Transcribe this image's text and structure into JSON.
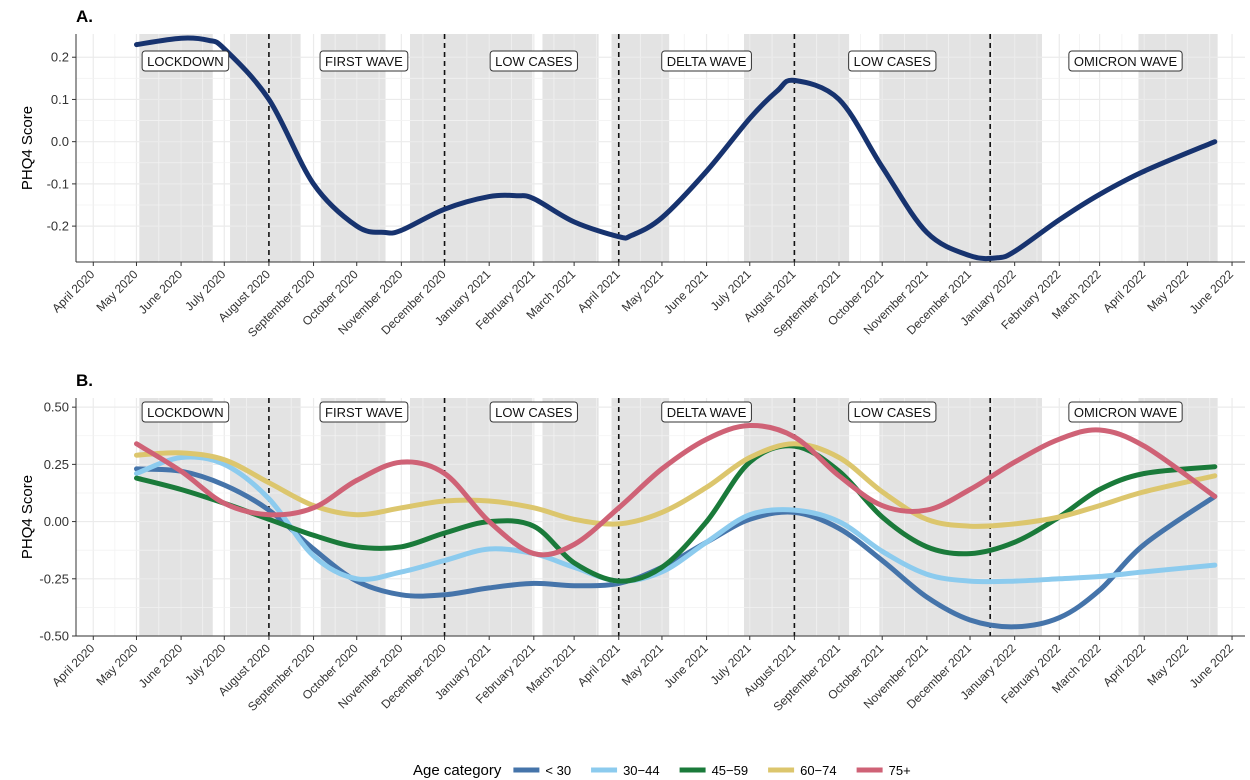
{
  "chart_data": [
    {
      "panel": "A.",
      "type": "line",
      "ylabel": "PHQ4 Score",
      "ylim": [
        -0.285,
        0.255
      ],
      "yticks": [
        0.2,
        0.1,
        0.0,
        -0.1,
        -0.2
      ],
      "ytick_labels": [
        "0.2",
        "0.1",
        "0.0",
        "-0.1",
        "-0.2"
      ],
      "grid": true,
      "series": [
        {
          "color": "#17336f",
          "x": [
            "2020-05-01",
            "2020-06-01",
            "2020-06-20",
            "2020-07-01",
            "2020-08-01",
            "2020-09-01",
            "2020-10-01",
            "2020-10-20",
            "2020-11-01",
            "2020-12-01",
            "2021-01-01",
            "2021-01-20",
            "2021-02-01",
            "2021-03-01",
            "2021-04-01",
            "2021-04-10",
            "2021-05-01",
            "2021-06-01",
            "2021-07-01",
            "2021-07-20",
            "2021-08-01",
            "2021-09-01",
            "2021-10-01",
            "2021-11-01",
            "2021-12-01",
            "2021-12-20",
            "2022-01-01",
            "2022-02-01",
            "2022-03-01",
            "2022-04-01",
            "2022-05-20"
          ],
          "y": [
            0.23,
            0.245,
            0.24,
            0.22,
            0.1,
            -0.1,
            -0.2,
            -0.215,
            -0.21,
            -0.16,
            -0.13,
            -0.128,
            -0.135,
            -0.19,
            -0.225,
            -0.222,
            -0.18,
            -0.07,
            0.055,
            0.12,
            0.145,
            0.1,
            -0.06,
            -0.215,
            -0.27,
            -0.275,
            -0.26,
            -0.185,
            -0.125,
            -0.07,
            0.0
          ]
        }
      ]
    },
    {
      "panel": "B.",
      "type": "line",
      "ylabel": "PHQ4 Score",
      "ylim": [
        -0.5,
        0.54
      ],
      "yticks": [
        0.5,
        0.25,
        0.0,
        -0.25,
        -0.5
      ],
      "ytick_labels": [
        "0.50",
        "0.25",
        "0.00",
        "-0.25",
        "-0.50"
      ],
      "grid": true,
      "legend": {
        "title": "Age category",
        "position": "bottom"
      },
      "series": [
        {
          "name": "< 30",
          "color": "#4574aa",
          "x": [
            "2020-05-01",
            "2020-06-01",
            "2020-07-01",
            "2020-08-01",
            "2020-09-01",
            "2020-10-01",
            "2020-11-01",
            "2020-12-01",
            "2021-01-01",
            "2021-02-01",
            "2021-03-01",
            "2021-04-01",
            "2021-05-01",
            "2021-06-01",
            "2021-07-01",
            "2021-08-01",
            "2021-09-01",
            "2021-10-01",
            "2021-11-01",
            "2021-12-01",
            "2022-01-01",
            "2022-02-01",
            "2022-03-01",
            "2022-04-01",
            "2022-05-20"
          ],
          "y": [
            0.23,
            0.22,
            0.16,
            0.05,
            -0.12,
            -0.26,
            -0.32,
            -0.32,
            -0.29,
            -0.27,
            -0.28,
            -0.27,
            -0.2,
            -0.09,
            0.01,
            0.04,
            -0.03,
            -0.17,
            -0.33,
            -0.43,
            -0.46,
            -0.42,
            -0.3,
            -0.1,
            0.11
          ]
        },
        {
          "name": "30−44",
          "color": "#8ccbee",
          "x": [
            "2020-05-01",
            "2020-06-01",
            "2020-07-01",
            "2020-08-01",
            "2020-09-01",
            "2020-10-01",
            "2020-11-01",
            "2020-12-01",
            "2021-01-01",
            "2021-02-01",
            "2021-03-01",
            "2021-04-01",
            "2021-05-01",
            "2021-06-01",
            "2021-07-01",
            "2021-08-01",
            "2021-09-01",
            "2021-10-01",
            "2021-11-01",
            "2021-12-01",
            "2022-01-01",
            "2022-02-01",
            "2022-03-01",
            "2022-04-01",
            "2022-05-20"
          ],
          "y": [
            0.21,
            0.28,
            0.25,
            0.1,
            -0.15,
            -0.25,
            -0.22,
            -0.17,
            -0.12,
            -0.14,
            -0.2,
            -0.26,
            -0.22,
            -0.09,
            0.03,
            0.05,
            0.0,
            -0.13,
            -0.23,
            -0.26,
            -0.26,
            -0.25,
            -0.24,
            -0.22,
            -0.19
          ]
        },
        {
          "name": "45−59",
          "color": "#1a7a3a",
          "x": [
            "2020-05-01",
            "2020-06-01",
            "2020-07-01",
            "2020-08-01",
            "2020-09-01",
            "2020-10-01",
            "2020-11-01",
            "2020-12-01",
            "2021-01-01",
            "2021-02-01",
            "2021-03-01",
            "2021-04-01",
            "2021-05-01",
            "2021-06-01",
            "2021-07-01",
            "2021-08-01",
            "2021-09-01",
            "2021-10-01",
            "2021-11-01",
            "2021-12-01",
            "2022-01-01",
            "2022-02-01",
            "2022-03-01",
            "2022-04-01",
            "2022-05-20"
          ],
          "y": [
            0.19,
            0.14,
            0.08,
            0.01,
            -0.06,
            -0.11,
            -0.11,
            -0.05,
            0.0,
            -0.02,
            -0.18,
            -0.26,
            -0.2,
            0.0,
            0.26,
            0.33,
            0.22,
            0.02,
            -0.11,
            -0.14,
            -0.09,
            0.02,
            0.14,
            0.21,
            0.24
          ]
        },
        {
          "name": "60−74",
          "color": "#dcc66d",
          "x": [
            "2020-05-01",
            "2020-06-01",
            "2020-07-01",
            "2020-08-01",
            "2020-09-01",
            "2020-10-01",
            "2020-11-01",
            "2020-12-01",
            "2021-01-01",
            "2021-02-01",
            "2021-03-01",
            "2021-04-01",
            "2021-05-01",
            "2021-06-01",
            "2021-07-01",
            "2021-08-01",
            "2021-09-01",
            "2021-10-01",
            "2021-11-01",
            "2021-12-01",
            "2022-01-01",
            "2022-02-01",
            "2022-03-01",
            "2022-04-01",
            "2022-05-20"
          ],
          "y": [
            0.29,
            0.3,
            0.27,
            0.17,
            0.07,
            0.03,
            0.06,
            0.09,
            0.09,
            0.06,
            0.01,
            -0.01,
            0.04,
            0.15,
            0.28,
            0.34,
            0.28,
            0.13,
            0.01,
            -0.02,
            -0.01,
            0.02,
            0.07,
            0.13,
            0.2
          ]
        },
        {
          "name": "75+",
          "color": "#cf6276",
          "x": [
            "2020-05-01",
            "2020-06-01",
            "2020-07-01",
            "2020-08-01",
            "2020-09-01",
            "2020-10-01",
            "2020-11-01",
            "2020-12-01",
            "2021-01-01",
            "2021-02-01",
            "2021-03-01",
            "2021-04-01",
            "2021-05-01",
            "2021-06-01",
            "2021-07-01",
            "2021-08-01",
            "2021-09-01",
            "2021-10-01",
            "2021-11-01",
            "2021-12-01",
            "2022-01-01",
            "2022-02-01",
            "2022-03-01",
            "2022-04-01",
            "2022-05-20"
          ],
          "y": [
            0.34,
            0.22,
            0.08,
            0.03,
            0.06,
            0.18,
            0.26,
            0.21,
            0.0,
            -0.14,
            -0.1,
            0.06,
            0.23,
            0.36,
            0.42,
            0.37,
            0.2,
            0.07,
            0.05,
            0.14,
            0.26,
            0.36,
            0.4,
            0.33,
            0.11
          ]
        }
      ]
    }
  ],
  "x_axis": {
    "ticks": [
      "2020-04-01",
      "2020-05-01",
      "2020-06-01",
      "2020-07-01",
      "2020-08-01",
      "2020-09-01",
      "2020-10-01",
      "2020-11-01",
      "2020-12-01",
      "2021-01-01",
      "2021-02-01",
      "2021-03-01",
      "2021-04-01",
      "2021-05-01",
      "2021-06-01",
      "2021-07-01",
      "2021-08-01",
      "2021-09-01",
      "2021-10-01",
      "2021-11-01",
      "2021-12-01",
      "2022-01-01",
      "2022-02-01",
      "2022-03-01",
      "2022-04-01",
      "2022-05-01",
      "2022-06-01"
    ],
    "tick_labels": [
      "April 2020",
      "May 2020",
      "June 2020",
      "July 2020",
      "August 2020",
      "September 2020",
      "October 2020",
      "November 2020",
      "December 2020",
      "January 2021",
      "February 2021",
      "March 2021",
      "April 2021",
      "May 2021",
      "June 2021",
      "July 2021",
      "August 2021",
      "September 2021",
      "October 2021",
      "November 2021",
      "December 2021",
      "January 2022",
      "February 2022",
      "March 2022",
      "April 2022",
      "May 2022",
      "June 2022"
    ],
    "range": [
      "2020-03-20",
      "2022-06-10"
    ]
  },
  "shaded_periods": [
    [
      "2020-05-03",
      "2020-06-23"
    ],
    [
      "2020-07-05",
      "2020-08-23"
    ],
    [
      "2020-09-06",
      "2020-10-21"
    ],
    [
      "2020-11-07",
      "2021-01-31"
    ],
    [
      "2021-02-07",
      "2021-03-18"
    ],
    [
      "2021-03-27",
      "2021-05-06"
    ],
    [
      "2021-06-27",
      "2021-09-08"
    ],
    [
      "2021-09-29",
      "2022-01-20"
    ],
    [
      "2022-03-28",
      "2022-05-22"
    ]
  ],
  "wave_lines": [
    "2020-08-01",
    "2020-12-01",
    "2021-04-01",
    "2021-08-01",
    "2021-12-15"
  ],
  "wave_labels": [
    {
      "text": "LOCKDOWN",
      "center": "2020-06-04"
    },
    {
      "text": "FIRST WAVE",
      "center": "2020-10-06"
    },
    {
      "text": "LOW CASES",
      "center": "2021-02-01"
    },
    {
      "text": "DELTA WAVE",
      "center": "2021-06-01"
    },
    {
      "text": "LOW CASES",
      "center": "2021-10-08"
    },
    {
      "text": "OMICRON WAVE",
      "center": "2022-03-19"
    }
  ]
}
